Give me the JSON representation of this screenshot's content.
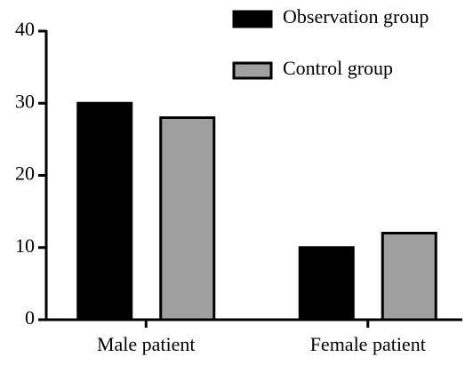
{
  "chart_data": {
    "type": "bar",
    "categories": [
      "Male patient",
      "Female patient"
    ],
    "series": [
      {
        "name": "Observation group",
        "color": "#000000",
        "values": [
          30,
          10
        ]
      },
      {
        "name": "Control group",
        "color": "#a0a0a0",
        "values": [
          28,
          12
        ]
      }
    ],
    "ylim": [
      0,
      40
    ],
    "yticks": [
      0,
      10,
      20,
      30,
      40
    ],
    "grid": false,
    "legend": "top-right"
  }
}
